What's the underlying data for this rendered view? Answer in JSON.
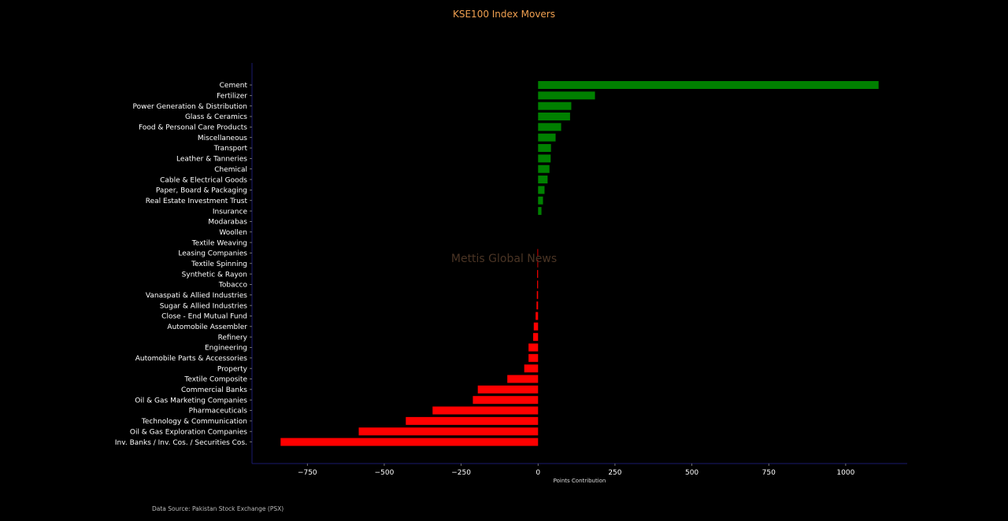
{
  "chart_data": {
    "type": "bar",
    "orientation": "horizontal",
    "title": "KSE100 Index Movers",
    "xlabel": "Points Contribution",
    "ylabel": "",
    "xlim": [
      -930,
      1200
    ],
    "xticks": [
      -750,
      -500,
      -250,
      0,
      250,
      500,
      750,
      1000
    ],
    "xtick_labels": [
      "−750",
      "−500",
      "−250",
      "0",
      "250",
      "500",
      "750",
      "1000"
    ],
    "grid": false,
    "categories": [
      "Cement",
      "Fertilizer",
      "Power Generation & Distribution",
      "Glass & Ceramics",
      "Food & Personal Care Products",
      "Miscellaneous",
      "Transport",
      "Leather & Tanneries",
      "Chemical",
      "Cable & Electrical Goods",
      "Paper, Board & Packaging",
      "Real Estate Investment Trust",
      "Insurance",
      "Modarabas",
      "Woollen",
      "Textile Weaving",
      "Leasing Companies",
      "Textile Spinning",
      "Synthetic & Rayon",
      "Tobacco",
      "Vanaspati & Allied Industries",
      "Sugar & Allied Industries",
      "Close - End Mutual Fund",
      "Automobile Assembler",
      "Refinery",
      "Engineering",
      "Automobile Parts & Accessories",
      "Property",
      "Textile Composite",
      "Commercial Banks",
      "Oil & Gas Marketing Companies",
      "Pharmaceuticals",
      "Technology & Communication",
      "Oil & Gas Exploration Companies",
      "Inv. Banks / Inv. Cos. / Securities Cos."
    ],
    "values": [
      1107,
      185,
      108,
      104,
      75,
      57,
      42,
      41,
      37,
      31,
      21,
      16,
      11,
      0,
      0,
      0,
      -2,
      -2,
      -3,
      -3,
      -4,
      -5,
      -8,
      -14,
      -16,
      -31,
      -31,
      -45,
      -100,
      -196,
      -212,
      -343,
      -430,
      -583,
      -837
    ],
    "colors": {
      "positive": "#008000",
      "negative": "#ff0000"
    }
  },
  "watermark": "Mettis Global News",
  "source": "Data Source: Pakistan Stock Exchange (PSX)"
}
